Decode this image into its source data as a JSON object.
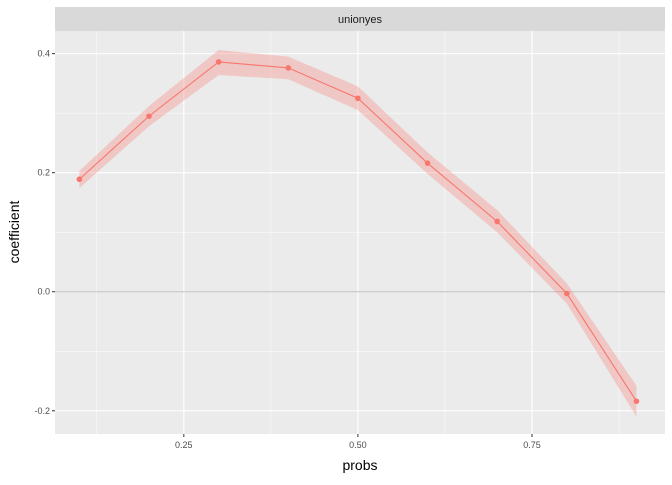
{
  "chart_data": {
    "type": "line",
    "facet_label": "unionyes",
    "xlabel": "probs",
    "ylabel": "coefficient",
    "xlim": [
      0.065,
      0.941
    ],
    "ylim": [
      -0.239,
      0.438
    ],
    "x_ticks": [
      0.25,
      0.5,
      0.75
    ],
    "x_tick_labels": [
      "0.25",
      "0.50",
      "0.75"
    ],
    "y_ticks": [
      -0.2,
      0.0,
      0.2,
      0.4
    ],
    "y_tick_labels": [
      "-0.2",
      "0.0",
      "0.2",
      "0.4"
    ],
    "grid": true,
    "hline": 0,
    "x": [
      0.1,
      0.2,
      0.3,
      0.4,
      0.5,
      0.6,
      0.7,
      0.8,
      0.9
    ],
    "y": [
      0.189,
      0.295,
      0.386,
      0.376,
      0.325,
      0.216,
      0.118,
      -0.003,
      -0.184
    ],
    "ymin": [
      0.174,
      0.278,
      0.364,
      0.357,
      0.305,
      0.198,
      0.1,
      -0.02,
      -0.21
    ],
    "ymax": [
      0.203,
      0.312,
      0.406,
      0.395,
      0.345,
      0.234,
      0.137,
      0.014,
      -0.158
    ],
    "colors": {
      "line": "#F8766D",
      "ribbon": "#F8766D",
      "panel": "#EBEBEB",
      "strip": "#D9D9D9",
      "hline": "#BEBEBE"
    }
  }
}
